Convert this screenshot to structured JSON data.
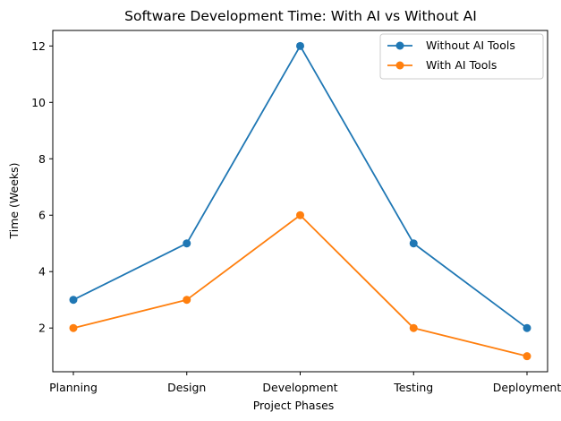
{
  "chart_data": {
    "type": "line",
    "title": "Software Development Time: With AI vs Without AI",
    "xlabel": "Project Phases",
    "ylabel": "Time (Weeks)",
    "categories": [
      "Planning",
      "Design",
      "Development",
      "Testing",
      "Deployment"
    ],
    "ylim": [
      0.45,
      12.55
    ],
    "yticks": [
      2,
      4,
      6,
      8,
      10,
      12
    ],
    "grid": false,
    "legend_position": "top-right",
    "series": [
      {
        "name": "Without AI Tools",
        "color": "#1f77b4",
        "marker": "circle",
        "values": [
          3,
          5,
          12,
          5,
          2
        ]
      },
      {
        "name": "With AI Tools",
        "color": "#ff7f0e",
        "marker": "circle",
        "values": [
          2,
          3,
          6,
          2,
          1
        ]
      }
    ]
  }
}
